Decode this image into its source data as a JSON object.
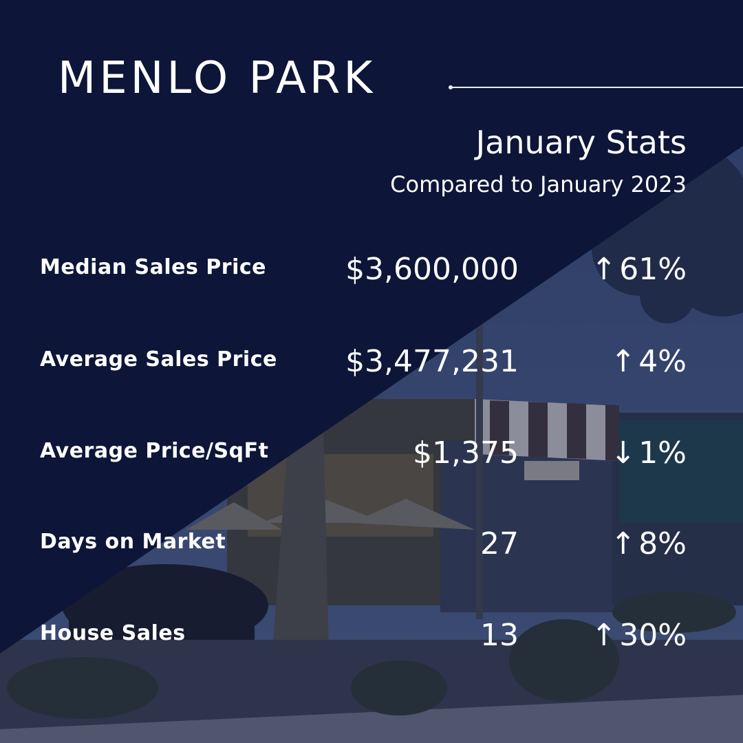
{
  "header": {
    "title": "MENLO PARK",
    "subtitle": "January Stats",
    "comparison": "Compared to January 2023"
  },
  "stats": [
    {
      "label": "Median Sales Price",
      "value": "$3,600,000",
      "arrow": "↑",
      "change": "61%"
    },
    {
      "label": "Average Sales Price",
      "value": "$3,477,231",
      "arrow": "↑",
      "change": "4%"
    },
    {
      "label": "Average Price/SqFt",
      "value": "$1,375",
      "arrow": "↓",
      "change": "1%"
    },
    {
      "label": "Days on Market",
      "value": "27",
      "arrow": "↑",
      "change": "8%"
    },
    {
      "label": "House Sales",
      "value": "13",
      "arrow": "↑",
      "change": "30%"
    }
  ],
  "colors": {
    "navy_panel": "#0d1638",
    "text": "#ffffff"
  }
}
